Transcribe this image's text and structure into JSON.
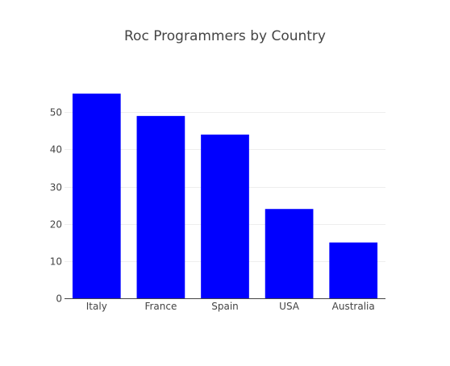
{
  "chart_data": {
    "type": "bar",
    "title": "Roc Programmers by Country",
    "xlabel": "",
    "ylabel": "",
    "categories": [
      "Italy",
      "France",
      "Spain",
      "USA",
      "Australia"
    ],
    "values": [
      55,
      49,
      44,
      24,
      15
    ],
    "ylim": [
      0,
      58.5
    ],
    "yticks": [
      0,
      10,
      20,
      30,
      40,
      50
    ],
    "grid": true,
    "legend": "none",
    "colors": {
      "bar": "#0000ff",
      "grid": "#eeeeee",
      "axis": "#444444",
      "text": "#444444"
    }
  }
}
